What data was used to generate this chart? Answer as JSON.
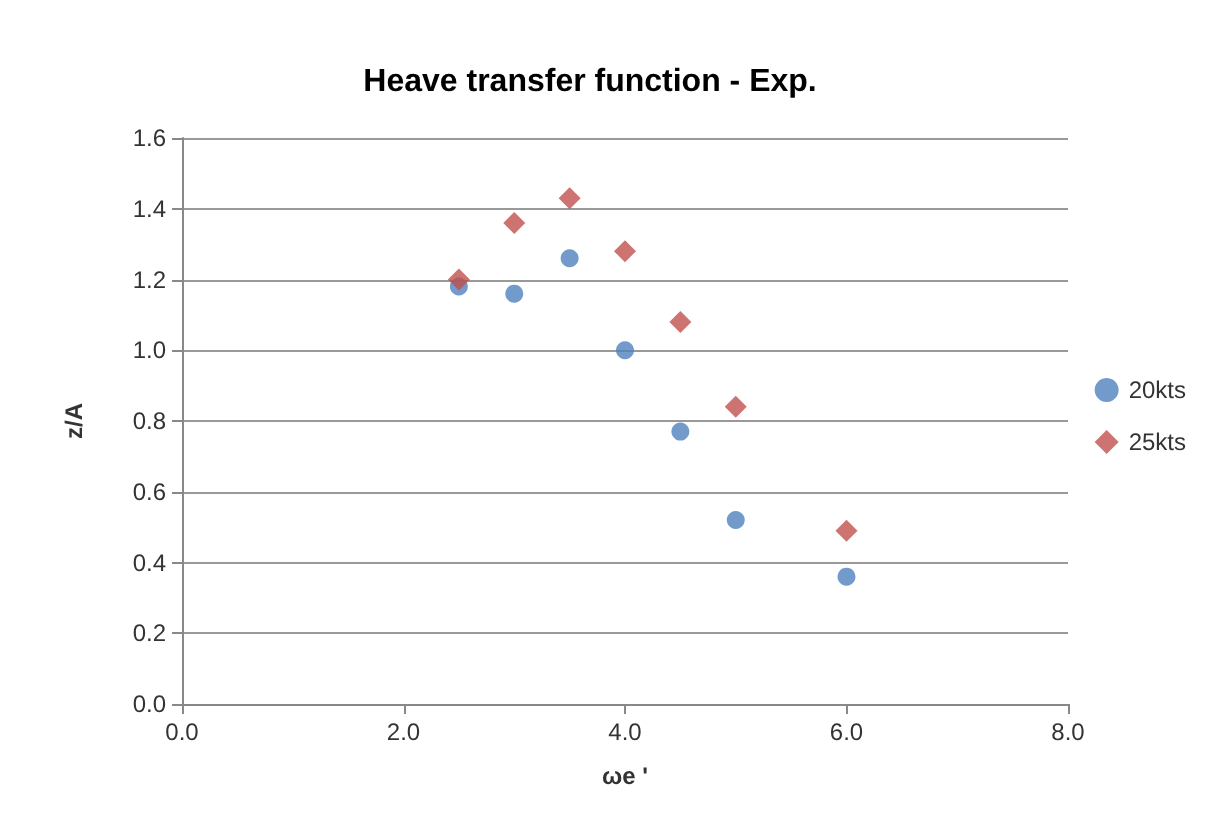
{
  "chart_data": {
    "type": "scatter",
    "title": "Heave transfer function - Exp.",
    "xlabel": "ωe '",
    "ylabel": "z/A",
    "series": [
      {
        "name": "20kts",
        "color": "#4f81bd",
        "marker": "circle",
        "x": [
          2.5,
          3.0,
          3.5,
          4.0,
          4.5,
          5.0,
          6.0
        ],
        "values": [
          1.18,
          1.16,
          1.26,
          1.0,
          0.77,
          0.52,
          0.36
        ]
      },
      {
        "name": "25kts",
        "color": "#c0504d",
        "marker": "diamond",
        "x": [
          2.5,
          3.0,
          3.5,
          4.0,
          4.5,
          5.0,
          6.0
        ],
        "values": [
          1.2,
          1.36,
          1.43,
          1.28,
          1.08,
          0.84,
          0.49
        ]
      }
    ],
    "xlim": [
      0,
      8
    ],
    "xticks": [
      {
        "value": 0,
        "label": "0.0"
      },
      {
        "value": 2,
        "label": "2.0"
      },
      {
        "value": 4,
        "label": "4.0"
      },
      {
        "value": 6,
        "label": "6.0"
      },
      {
        "value": 8,
        "label": "8.0"
      }
    ],
    "ylim": [
      0,
      1.6
    ],
    "yticks": [
      {
        "value": 0,
        "label": "0.0"
      },
      {
        "value": 0.2,
        "label": "0.2"
      },
      {
        "value": 0.4,
        "label": "0.4"
      },
      {
        "value": 0.6,
        "label": "0.6"
      },
      {
        "value": 0.8,
        "label": "0.8"
      },
      {
        "value": 1.0,
        "label": "1.0"
      },
      {
        "value": 1.2,
        "label": "1.2"
      },
      {
        "value": 1.4,
        "label": "1.4"
      },
      {
        "value": 1.6,
        "label": "1.6"
      }
    ],
    "grid": "y",
    "legend": "right"
  }
}
